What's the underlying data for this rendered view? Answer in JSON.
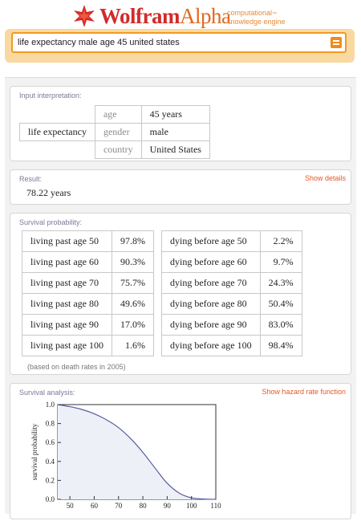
{
  "header": {
    "logo_wolfram": "Wolfram",
    "logo_alpha": "Alpha",
    "tagline_line1": "computational",
    "tagline_line1_suffix": "™",
    "tagline_line2": "knowledge engine",
    "brand_colors": {
      "wolfram": "#d22a2a",
      "alpha": "#e2681e",
      "accent": "#f39a23"
    }
  },
  "search": {
    "value": "life expectancy male age 45 united states",
    "button_icon": "equals-icon"
  },
  "pods": {
    "input": {
      "title": "Input interpretation:",
      "main_label": "life expectancy",
      "rows": [
        {
          "key": "age",
          "value": "45 years"
        },
        {
          "key": "gender",
          "value": "male"
        },
        {
          "key": "country",
          "value": "United States"
        }
      ]
    },
    "result": {
      "title": "Result:",
      "action": "Show details",
      "value": "78.22 years"
    },
    "survival": {
      "title": "Survival probability:",
      "living": [
        {
          "label": "living past age 50",
          "value": "97.8%"
        },
        {
          "label": "living past age 60",
          "value": "90.3%"
        },
        {
          "label": "living past age 70",
          "value": "75.7%"
        },
        {
          "label": "living past age 80",
          "value": "49.6%"
        },
        {
          "label": "living past age 90",
          "value": "17.0%"
        },
        {
          "label": "living past age 100",
          "value": "1.6%"
        }
      ],
      "dying": [
        {
          "label": "dying before age 50",
          "value": "2.2%"
        },
        {
          "label": "dying before age 60",
          "value": "9.7%"
        },
        {
          "label": "dying before age 70",
          "value": "24.3%"
        },
        {
          "label": "dying before age 80",
          "value": "50.4%"
        },
        {
          "label": "dying before age 90",
          "value": "83.0%"
        },
        {
          "label": "dying before age 100",
          "value": "98.4%"
        }
      ],
      "footnote": "(based on death rates in 2005)"
    },
    "analysis": {
      "title": "Survival analysis:",
      "action": "Show hazard rate function"
    }
  },
  "chart_data": {
    "type": "line",
    "title": "",
    "xlabel": "",
    "ylabel": "survival probability",
    "xlim": [
      45,
      110
    ],
    "ylim": [
      0,
      1
    ],
    "xticks": [
      50,
      60,
      70,
      80,
      90,
      100,
      110
    ],
    "yticks": [
      "0.0",
      "0.2",
      "0.4",
      "0.6",
      "0.8",
      "1.0"
    ],
    "series": [
      {
        "x": [
          45,
          50,
          55,
          60,
          65,
          70,
          75,
          80,
          85,
          90,
          95,
          100,
          105,
          110
        ],
        "y": [
          1.0,
          0.978,
          0.948,
          0.903,
          0.84,
          0.757,
          0.64,
          0.496,
          0.33,
          0.17,
          0.065,
          0.016,
          0.003,
          0.0
        ],
        "color": "#5a5aa0"
      }
    ],
    "grid": false,
    "fill": "#eef0f8"
  }
}
